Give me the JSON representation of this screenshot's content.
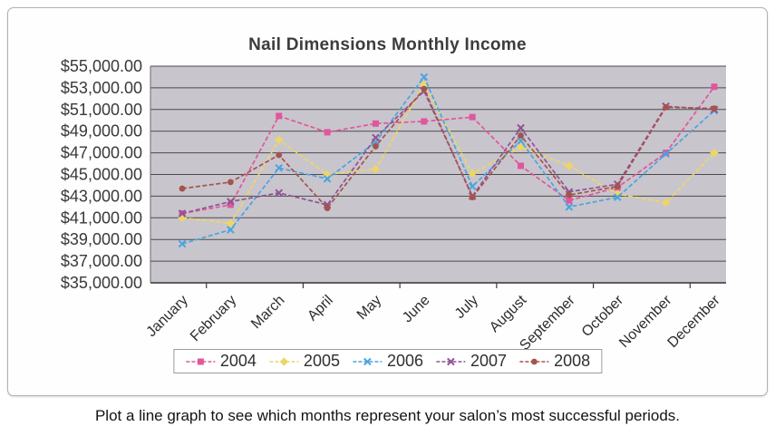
{
  "figure": {
    "caption": "Plot a line graph to see which months represent your salon’s most successful periods."
  },
  "chart_data": {
    "type": "line",
    "title": "Nail Dimensions Monthly Income",
    "categories": [
      "January",
      "February",
      "March",
      "April",
      "May",
      "June",
      "July",
      "August",
      "September",
      "October",
      "November",
      "December"
    ],
    "y_ticks": [
      "$55,000.00",
      "$53,000.00",
      "$51,000.00",
      "$49,000.00",
      "$47,000.00",
      "$45,000.00",
      "$43,000.00",
      "$41,000.00",
      "$39,000.00",
      "$37,000.00",
      "$35,000.00"
    ],
    "ylim": [
      35000,
      55000
    ],
    "y_step": 2000,
    "grid": true,
    "legend_position": "bottom",
    "plot_bg": "#c9c5cd",
    "grid_color": "#4c4a4e",
    "series": [
      {
        "name": "2004",
        "color": "#e0579b",
        "marker": "square",
        "values": [
          41400,
          42200,
          50400,
          48900,
          49700,
          49900,
          50300,
          45800,
          42600,
          43800,
          47000,
          53100
        ]
      },
      {
        "name": "2005",
        "color": "#ecd765",
        "marker": "diamond",
        "values": [
          41000,
          40500,
          48200,
          45000,
          45500,
          53300,
          45100,
          47500,
          45800,
          43200,
          42400,
          47000
        ]
      },
      {
        "name": "2006",
        "color": "#4aa4df",
        "marker": "x",
        "values": [
          38600,
          39900,
          45600,
          44600,
          48000,
          54000,
          43900,
          48100,
          42000,
          42900,
          46900,
          50900
        ]
      },
      {
        "name": "2007",
        "color": "#8f5295",
        "marker": "x",
        "values": [
          41400,
          42500,
          43300,
          42200,
          48400,
          52700,
          43000,
          49300,
          43400,
          44100,
          51300,
          51000
        ]
      },
      {
        "name": "2008",
        "color": "#a5544b",
        "marker": "circle",
        "values": [
          43700,
          44300,
          46800,
          41900,
          47600,
          52900,
          42900,
          48600,
          43100,
          43900,
          51200,
          51100
        ]
      }
    ]
  }
}
